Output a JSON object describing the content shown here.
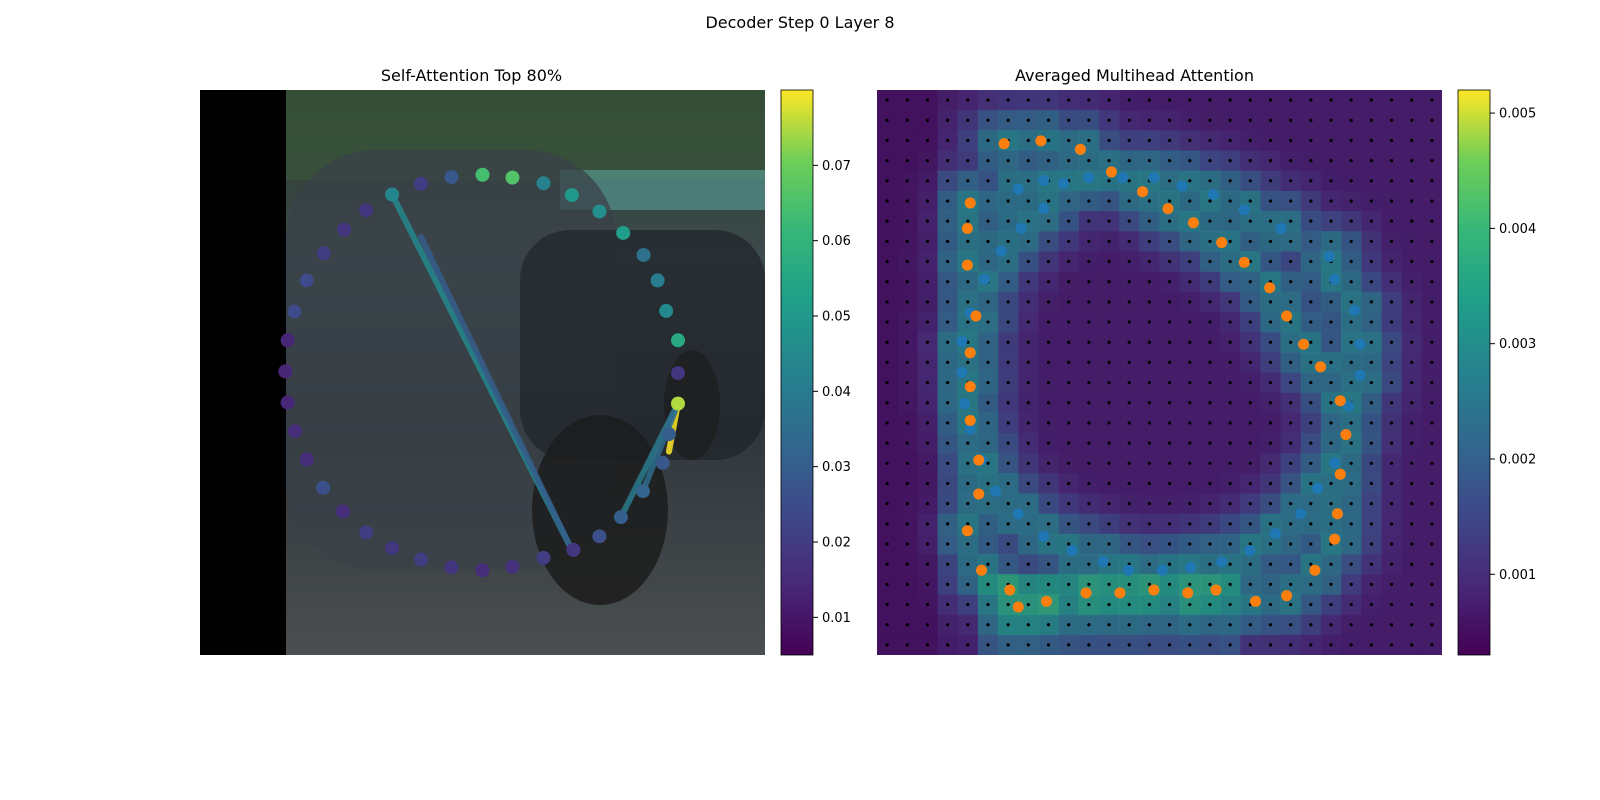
{
  "figure": {
    "title": "Decoder Step 0 Layer 8"
  },
  "chart_data": [
    {
      "type": "scatter",
      "title": "Self-Attention Top 80%",
      "colormap": "viridis",
      "colorbar": {
        "min": 0.005,
        "max": 0.08,
        "ticks": [
          0.01,
          0.02,
          0.03,
          0.04,
          0.05,
          0.06,
          0.07
        ]
      },
      "background": "camera image (road scene with car), left region black",
      "xlim": [
        0,
        100
      ],
      "ylim": [
        0,
        100
      ],
      "points": [
        {
          "x": 34.0,
          "y": 81.5,
          "v": 0.044
        },
        {
          "x": 39.1,
          "y": 83.4,
          "v": 0.02
        },
        {
          "x": 44.5,
          "y": 84.6,
          "v": 0.028
        },
        {
          "x": 50.0,
          "y": 85.0,
          "v": 0.064
        },
        {
          "x": 55.3,
          "y": 84.5,
          "v": 0.066
        },
        {
          "x": 60.8,
          "y": 83.5,
          "v": 0.042
        },
        {
          "x": 65.8,
          "y": 81.4,
          "v": 0.05
        },
        {
          "x": 70.7,
          "y": 78.5,
          "v": 0.047
        },
        {
          "x": 74.9,
          "y": 74.7,
          "v": 0.052
        },
        {
          "x": 78.5,
          "y": 70.8,
          "v": 0.036
        },
        {
          "x": 81.0,
          "y": 66.3,
          "v": 0.041
        },
        {
          "x": 82.5,
          "y": 60.9,
          "v": 0.045
        },
        {
          "x": 84.6,
          "y": 55.7,
          "v": 0.056
        },
        {
          "x": 84.6,
          "y": 49.9,
          "v": 0.018
        },
        {
          "x": 84.6,
          "y": 44.5,
          "v": 0.075
        },
        {
          "x": 83.0,
          "y": 39.1,
          "v": 0.03
        },
        {
          "x": 81.9,
          "y": 34.0,
          "v": 0.028
        },
        {
          "x": 78.4,
          "y": 29.0,
          "v": 0.032
        },
        {
          "x": 74.5,
          "y": 24.4,
          "v": 0.03
        },
        {
          "x": 70.7,
          "y": 21.0,
          "v": 0.026
        },
        {
          "x": 66.1,
          "y": 18.6,
          "v": 0.018
        },
        {
          "x": 60.8,
          "y": 17.2,
          "v": 0.02
        },
        {
          "x": 55.3,
          "y": 15.6,
          "v": 0.017
        },
        {
          "x": 50.0,
          "y": 15.0,
          "v": 0.016
        },
        {
          "x": 44.5,
          "y": 15.5,
          "v": 0.018
        },
        {
          "x": 39.1,
          "y": 16.9,
          "v": 0.02
        },
        {
          "x": 34.0,
          "y": 18.9,
          "v": 0.019
        },
        {
          "x": 29.4,
          "y": 21.7,
          "v": 0.02
        },
        {
          "x": 25.3,
          "y": 25.4,
          "v": 0.016
        },
        {
          "x": 21.8,
          "y": 29.6,
          "v": 0.026
        },
        {
          "x": 18.9,
          "y": 34.6,
          "v": 0.016
        },
        {
          "x": 16.8,
          "y": 39.6,
          "v": 0.016
        },
        {
          "x": 15.5,
          "y": 44.7,
          "v": 0.014
        },
        {
          "x": 15.1,
          "y": 50.2,
          "v": 0.014
        },
        {
          "x": 15.5,
          "y": 55.7,
          "v": 0.014
        },
        {
          "x": 16.7,
          "y": 60.8,
          "v": 0.024
        },
        {
          "x": 18.9,
          "y": 66.3,
          "v": 0.024
        },
        {
          "x": 21.9,
          "y": 71.1,
          "v": 0.02
        },
        {
          "x": 25.5,
          "y": 75.3,
          "v": 0.018
        },
        {
          "x": 29.4,
          "y": 78.7,
          "v": 0.018
        }
      ],
      "links": [
        {
          "from": {
            "x": 84.6,
            "y": 44.5
          },
          "to": {
            "x": 83.0,
            "y": 36.0
          },
          "v": 0.08
        },
        {
          "from": {
            "x": 84.6,
            "y": 44.5
          },
          "to": {
            "x": 74.5,
            "y": 24.4
          },
          "v": 0.04
        },
        {
          "from": {
            "x": 84.6,
            "y": 44.5
          },
          "to": {
            "x": 78.4,
            "y": 29.0
          },
          "v": 0.035
        },
        {
          "from": {
            "x": 65.8,
            "y": 18.6
          },
          "to": {
            "x": 34.0,
            "y": 81.5
          },
          "v": 0.045
        },
        {
          "from": {
            "x": 65.8,
            "y": 18.6
          },
          "to": {
            "x": 39.1,
            "y": 74.0
          },
          "v": 0.03
        }
      ]
    },
    {
      "type": "heatmap",
      "title": "Averaged Multihead Attention",
      "colormap": "viridis",
      "colorbar": {
        "min": 0.0003,
        "max": 0.0052,
        "ticks": [
          0.001,
          0.002,
          0.003,
          0.004,
          0.005
        ]
      },
      "grid": {
        "rows": 28,
        "cols": 28,
        "dot_markers": true
      },
      "xlim": [
        0,
        100
      ],
      "ylim": [
        0,
        100
      ],
      "series": [
        {
          "color": "#1f77b4",
          "points": [
            {
              "x": 25.0,
              "y": 82.5
            },
            {
              "x": 29.5,
              "y": 84.0
            },
            {
              "x": 33.0,
              "y": 83.5
            },
            {
              "x": 37.5,
              "y": 84.5
            },
            {
              "x": 43.5,
              "y": 84.5
            },
            {
              "x": 49.0,
              "y": 84.5
            },
            {
              "x": 54.0,
              "y": 83.0
            },
            {
              "x": 59.5,
              "y": 81.5
            },
            {
              "x": 65.0,
              "y": 78.8
            },
            {
              "x": 71.5,
              "y": 75.5
            },
            {
              "x": 80.0,
              "y": 70.5
            },
            {
              "x": 81.0,
              "y": 66.5
            },
            {
              "x": 84.5,
              "y": 61.0
            },
            {
              "x": 85.5,
              "y": 55.0
            },
            {
              "x": 85.5,
              "y": 49.5
            },
            {
              "x": 83.5,
              "y": 44.0
            },
            {
              "x": 81.0,
              "y": 34.0
            },
            {
              "x": 78.0,
              "y": 29.5
            },
            {
              "x": 75.0,
              "y": 25.0
            },
            {
              "x": 70.5,
              "y": 21.5
            },
            {
              "x": 66.0,
              "y": 18.5
            },
            {
              "x": 61.0,
              "y": 16.5
            },
            {
              "x": 55.5,
              "y": 15.5
            },
            {
              "x": 50.5,
              "y": 15.0
            },
            {
              "x": 44.5,
              "y": 15.0
            },
            {
              "x": 40.0,
              "y": 16.5
            },
            {
              "x": 34.5,
              "y": 18.5
            },
            {
              "x": 29.5,
              "y": 21.0
            },
            {
              "x": 25.0,
              "y": 25.0
            },
            {
              "x": 21.0,
              "y": 29.0
            },
            {
              "x": 18.5,
              "y": 34.5
            },
            {
              "x": 16.5,
              "y": 40.0
            },
            {
              "x": 15.5,
              "y": 44.5
            },
            {
              "x": 15.0,
              "y": 50.0
            },
            {
              "x": 15.0,
              "y": 55.5
            },
            {
              "x": 16.5,
              "y": 60.5
            },
            {
              "x": 19.0,
              "y": 66.5
            },
            {
              "x": 22.0,
              "y": 71.5
            },
            {
              "x": 25.5,
              "y": 75.5
            },
            {
              "x": 29.5,
              "y": 79.0
            }
          ]
        },
        {
          "color": "#ff7f0e",
          "points": [
            {
              "x": 22.5,
              "y": 90.5
            },
            {
              "x": 29.0,
              "y": 91.0
            },
            {
              "x": 36.0,
              "y": 89.5
            },
            {
              "x": 41.5,
              "y": 85.5
            },
            {
              "x": 47.0,
              "y": 82.0
            },
            {
              "x": 51.5,
              "y": 79.0
            },
            {
              "x": 56.0,
              "y": 76.5
            },
            {
              "x": 61.0,
              "y": 73.0
            },
            {
              "x": 65.0,
              "y": 69.5
            },
            {
              "x": 69.5,
              "y": 65.0
            },
            {
              "x": 72.5,
              "y": 60.0
            },
            {
              "x": 75.5,
              "y": 55.0
            },
            {
              "x": 78.5,
              "y": 51.0
            },
            {
              "x": 82.0,
              "y": 45.0
            },
            {
              "x": 83.0,
              "y": 39.0
            },
            {
              "x": 82.0,
              "y": 32.0
            },
            {
              "x": 81.5,
              "y": 25.0
            },
            {
              "x": 81.0,
              "y": 20.5
            },
            {
              "x": 77.5,
              "y": 15.0
            },
            {
              "x": 72.5,
              "y": 10.5
            },
            {
              "x": 67.0,
              "y": 9.5
            },
            {
              "x": 60.0,
              "y": 11.5
            },
            {
              "x": 55.0,
              "y": 11.0
            },
            {
              "x": 49.0,
              "y": 11.5
            },
            {
              "x": 43.0,
              "y": 11.0
            },
            {
              "x": 37.0,
              "y": 11.0
            },
            {
              "x": 30.0,
              "y": 9.5
            },
            {
              "x": 25.0,
              "y": 8.5
            },
            {
              "x": 23.5,
              "y": 11.5
            },
            {
              "x": 18.5,
              "y": 15.0
            },
            {
              "x": 16.0,
              "y": 22.0
            },
            {
              "x": 18.0,
              "y": 28.5
            },
            {
              "x": 18.0,
              "y": 34.5
            },
            {
              "x": 16.5,
              "y": 41.5
            },
            {
              "x": 16.5,
              "y": 47.5
            },
            {
              "x": 16.5,
              "y": 53.5
            },
            {
              "x": 17.5,
              "y": 60.0
            },
            {
              "x": 16.0,
              "y": 69.0
            },
            {
              "x": 16.0,
              "y": 75.5
            },
            {
              "x": 16.5,
              "y": 80.0
            }
          ]
        }
      ]
    }
  ]
}
